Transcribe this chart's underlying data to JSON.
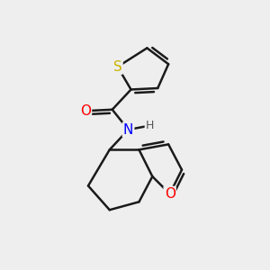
{
  "background_color": "#eeeeee",
  "bond_color": "#1a1a1a",
  "bond_width": 1.8,
  "atom_colors": {
    "S": "#c8b400",
    "O": "#ff0000",
    "N": "#0000ff",
    "H": "#555555"
  },
  "figsize": [
    3.0,
    3.0
  ],
  "dpi": 100
}
